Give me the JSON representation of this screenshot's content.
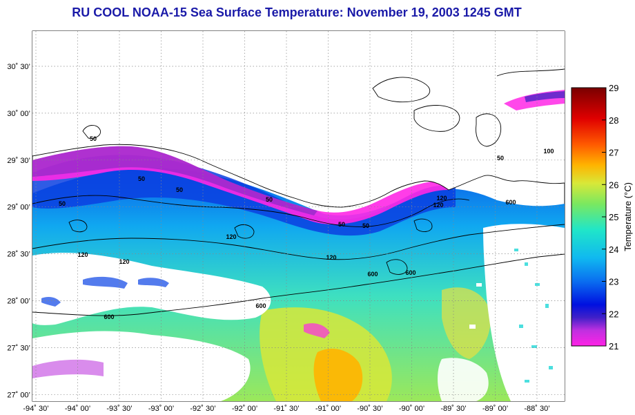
{
  "title": "RU COOL  NOAA-15  Sea Surface Temperature:  November 19, 2003 1245 GMT",
  "map": {
    "lat_labels": [
      "30˚ 30’",
      "30˚ 00’",
      "29˚ 30’",
      "29˚ 00’",
      "28˚ 30’",
      "28˚ 00’",
      "27˚ 30’",
      "27˚ 00’"
    ],
    "lon_labels": [
      "-94˚ 30’",
      "-94˚ 00’",
      "-93˚ 30’",
      "-93˚ 00’",
      "-92˚ 30’",
      "-92˚ 00’",
      "-91˚ 30’",
      "-91˚ 00’",
      "-90˚ 30’",
      "-90˚ 00’",
      "-89˚ 30’",
      "-89˚ 00’",
      "-88˚ 30’"
    ],
    "contour_labels": [
      "50",
      "50",
      "50",
      "50",
      "50",
      "50",
      "50",
      "120",
      "120",
      "120",
      "120",
      "120",
      "600",
      "600",
      "600",
      "600",
      "600",
      "100",
      "50",
      "120"
    ]
  },
  "colorbar": {
    "ticks": [
      "29",
      "28",
      "27",
      "26",
      "25",
      "24",
      "23",
      "22",
      "21"
    ],
    "label": "Temperature (°C)",
    "range": [
      21,
      29
    ],
    "colors": [
      "#ff22e6",
      "#6a2ab8",
      "#0010e0",
      "#0a6ef0",
      "#10b8f0",
      "#20e6c8",
      "#7ae860",
      "#d8e838",
      "#ffb400",
      "#ff5a00",
      "#e00000",
      "#7a0000"
    ]
  }
}
